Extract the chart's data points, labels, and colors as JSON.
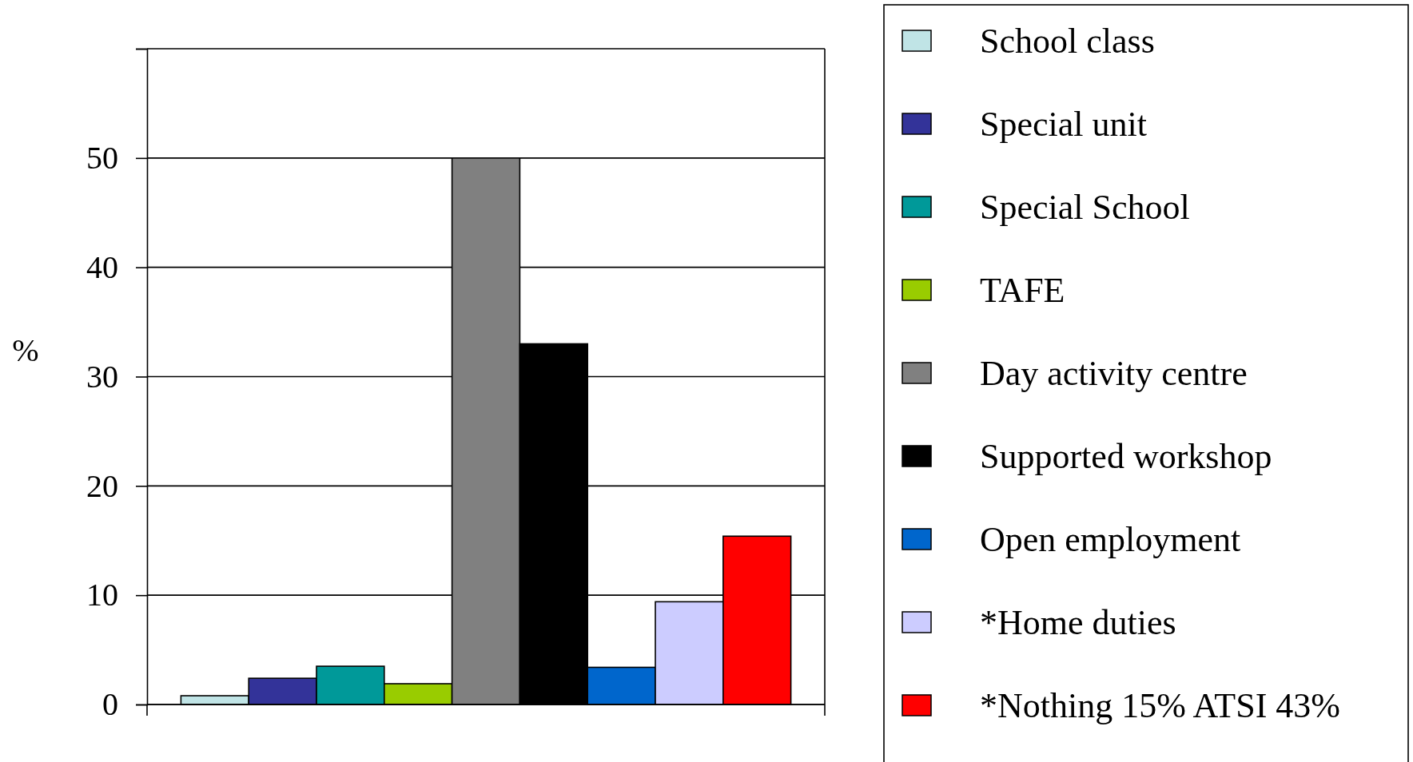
{
  "chart_data": {
    "type": "bar",
    "ylabel": "%",
    "categories": [
      null
    ],
    "series": [
      {
        "name": "School class",
        "color": "#c0e4e6",
        "values": [
          0.8
        ]
      },
      {
        "name": "Special unit",
        "color": "#333399",
        "values": [
          2.4
        ]
      },
      {
        "name": "Special School",
        "color": "#009999",
        "values": [
          3.5
        ]
      },
      {
        "name": "TAFE",
        "color": "#99cc00",
        "values": [
          1.9
        ]
      },
      {
        "name": "Day activity centre",
        "color": "#808080",
        "values": [
          50
        ]
      },
      {
        "name": "Supported workshop",
        "color": "#000000",
        "values": [
          33
        ]
      },
      {
        "name": "Open employment",
        "color": "#0066cc",
        "values": [
          3.4
        ]
      },
      {
        "name": "*Home duties",
        "color": "#ccccff",
        "values": [
          9.4
        ]
      },
      {
        "name": "*Nothing 15% ATSI 43%",
        "color": "#ff0000",
        "values": [
          15.4
        ]
      }
    ],
    "ylim": [
      0,
      60
    ],
    "yticks": [
      0,
      10,
      20,
      30,
      40,
      50,
      {
        "value": 60,
        "label": null
      }
    ],
    "grid": "y",
    "legend": "right"
  }
}
